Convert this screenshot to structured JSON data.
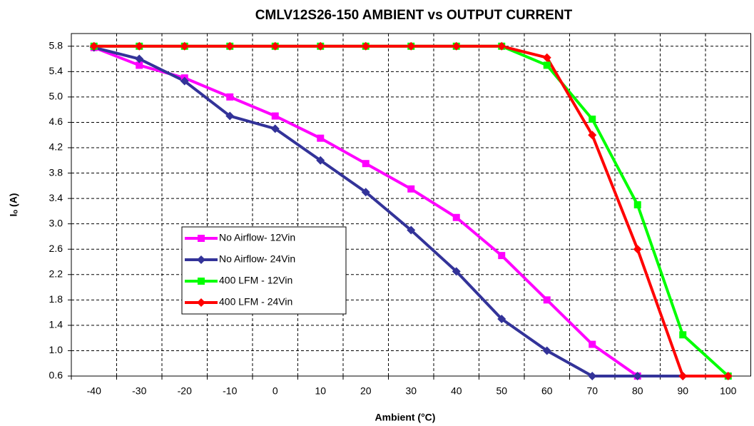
{
  "chart_data": {
    "type": "line",
    "title": "CMLV12S26-150 AMBIENT vs OUTPUT CURRENT",
    "x_label": "Ambient (°C)",
    "y_label": "Iₒ (A)",
    "categories": [
      "-40",
      "-30",
      "-20",
      "-10",
      "0",
      "10",
      "20",
      "30",
      "40",
      "50",
      "60",
      "70",
      "80",
      "90",
      "100"
    ],
    "series": [
      {
        "name": "No Airflow- 12Vin",
        "color": "#ff00ff",
        "marker": "square",
        "values": [
          5.78,
          5.5,
          5.3,
          5.0,
          4.7,
          4.35,
          3.95,
          3.55,
          3.1,
          2.5,
          1.8,
          1.1,
          0.6,
          null,
          null
        ]
      },
      {
        "name": "No Airflow- 24Vin",
        "color": "#333399",
        "marker": "diamond",
        "values": [
          5.78,
          5.6,
          5.25,
          4.7,
          4.5,
          4.0,
          3.5,
          2.9,
          2.25,
          1.5,
          1.0,
          0.6,
          0.6,
          0.6,
          null
        ]
      },
      {
        "name": "400 LFM - 12Vin",
        "color": "#00ff00",
        "marker": "square",
        "values": [
          5.8,
          5.8,
          5.8,
          5.8,
          5.8,
          5.8,
          5.8,
          5.8,
          5.8,
          5.8,
          5.5,
          4.65,
          3.3,
          1.25,
          0.6
        ]
      },
      {
        "name": "400 LFM - 24Vin",
        "color": "#ff0000",
        "marker": "diamond",
        "values": [
          5.8,
          5.8,
          5.8,
          5.8,
          5.8,
          5.8,
          5.8,
          5.8,
          5.8,
          5.8,
          5.62,
          4.4,
          2.6,
          0.6,
          0.6
        ]
      }
    ],
    "ylim": [
      0.6,
      6.0
    ],
    "yticks": [
      {
        "value": 0.6,
        "label": "0.6"
      },
      {
        "value": 1.0,
        "label": "1.0"
      },
      1.4,
      1.8,
      2.2,
      2.6,
      {
        "value": 3.0,
        "label": "3.0"
      },
      3.4,
      3.8,
      4.2,
      4.6,
      {
        "value": 5.0,
        "label": "5.0"
      },
      5.4,
      5.8
    ],
    "grid": true,
    "legend": "left"
  }
}
